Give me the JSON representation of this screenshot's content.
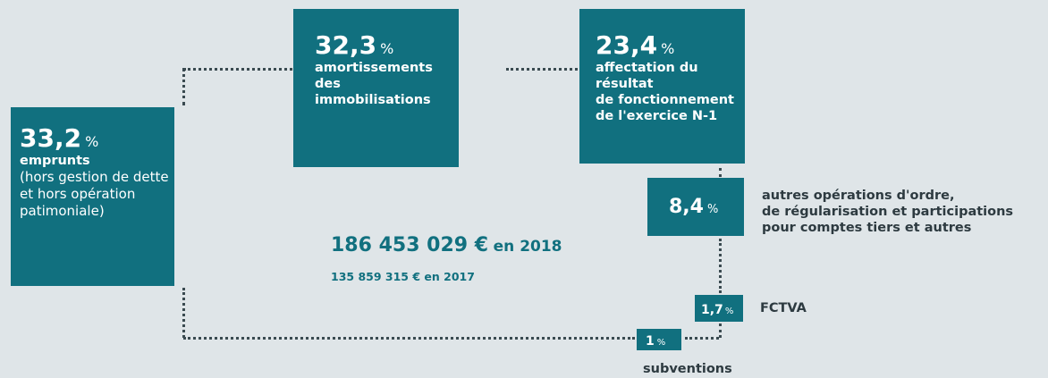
{
  "blocks": [
    {
      "value": "33,2",
      "unit": "%",
      "label": "emprunts",
      "note": [
        "(hors gestion de dette",
        "et hors opération",
        "patimoniale)"
      ]
    },
    {
      "value": "32,3",
      "unit": "%",
      "label": [
        "amortissements",
        "des immobilisations"
      ]
    },
    {
      "value": "23,4",
      "unit": "%",
      "label": [
        "affectation du résultat",
        "de fonctionnement",
        "de l'exercice N-1"
      ]
    },
    {
      "value": "8,4",
      "unit": "%",
      "label": [
        "autres opérations d'ordre,",
        "de régularisation et participations",
        "pour comptes tiers et autres"
      ]
    },
    {
      "value": "1,7",
      "unit": "%",
      "label": "FCTVA"
    },
    {
      "value": "1",
      "unit": "%",
      "label": "subventions"
    }
  ],
  "total": {
    "amount": "186 453 029 €",
    "year": "en 2018"
  },
  "previous": {
    "amount": "135 859 315 €",
    "year": "en 2017"
  }
}
